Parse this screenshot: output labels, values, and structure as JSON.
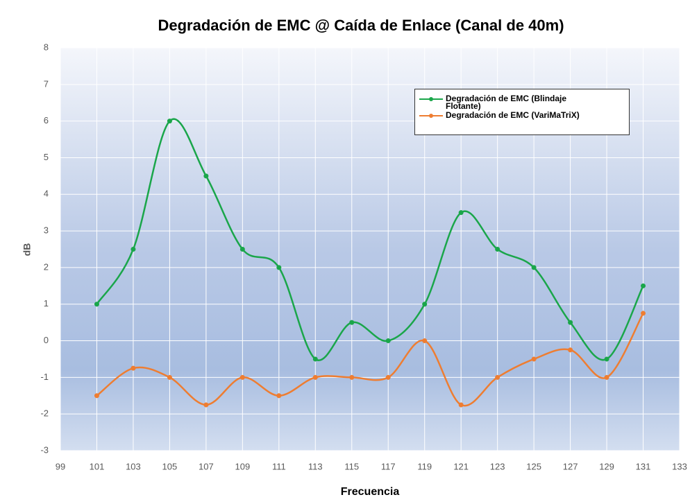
{
  "chart_data": {
    "type": "line",
    "title": "Degradación de EMC @ Caída de Enlace (Canal de 40m)",
    "x_label": "Frecuencia",
    "y_label": "dB",
    "x": [
      101,
      103,
      105,
      107,
      109,
      111,
      113,
      115,
      117,
      119,
      121,
      123,
      125,
      127,
      129,
      131
    ],
    "series": [
      {
        "name": "Degradación de EMC (Blindaje Flotante)",
        "color": "#1aa64a",
        "values": [
          1,
          2.5,
          6,
          4.5,
          2.5,
          2,
          -0.5,
          0.5,
          0,
          1,
          3.5,
          2.5,
          2,
          0.5,
          -0.5,
          1.5
        ]
      },
      {
        "name": "Degradación de EMC (VariMaTriX)",
        "color": "#ee7d31",
        "values": [
          -1.5,
          -0.75,
          -1,
          -1.75,
          -1,
          -1.5,
          -1,
          -1,
          -1,
          0,
          -1.75,
          -1,
          -0.5,
          -0.25,
          -1,
          0.75
        ]
      }
    ],
    "xlim": [
      99,
      133
    ],
    "xticks": [
      99,
      101,
      103,
      105,
      107,
      109,
      111,
      113,
      115,
      117,
      119,
      121,
      123,
      125,
      127,
      129,
      131,
      133
    ],
    "ylim": [
      -3,
      8
    ],
    "yticks": [
      -3,
      -2,
      -1,
      0,
      1,
      2,
      3,
      4,
      5,
      6,
      7,
      8
    ],
    "grid": true,
    "legend": "upper right"
  }
}
